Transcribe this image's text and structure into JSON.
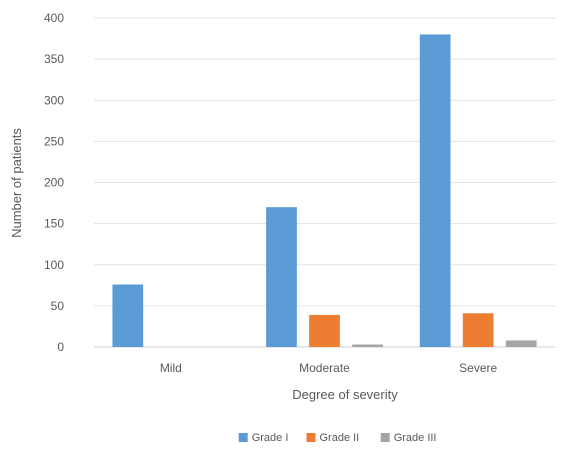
{
  "chart_data": {
    "type": "bar",
    "xlabel": "Degree of severity",
    "ylabel": "Number of patients",
    "ylim": [
      0,
      400
    ],
    "yticks": [
      0,
      50,
      100,
      150,
      200,
      250,
      300,
      350,
      400
    ],
    "grid": true,
    "legend_position": "bottom",
    "categories": [
      "Mild",
      "Moderate",
      "Severe"
    ],
    "series": [
      {
        "name": "Grade I",
        "color": "#5B9BD5",
        "values": [
          76,
          170,
          380
        ]
      },
      {
        "name": "Grade II",
        "color": "#ED7D31",
        "values": [
          0,
          39,
          41
        ]
      },
      {
        "name": "Grade III",
        "color": "#A5A5A5",
        "values": [
          0,
          3,
          8
        ]
      }
    ]
  }
}
